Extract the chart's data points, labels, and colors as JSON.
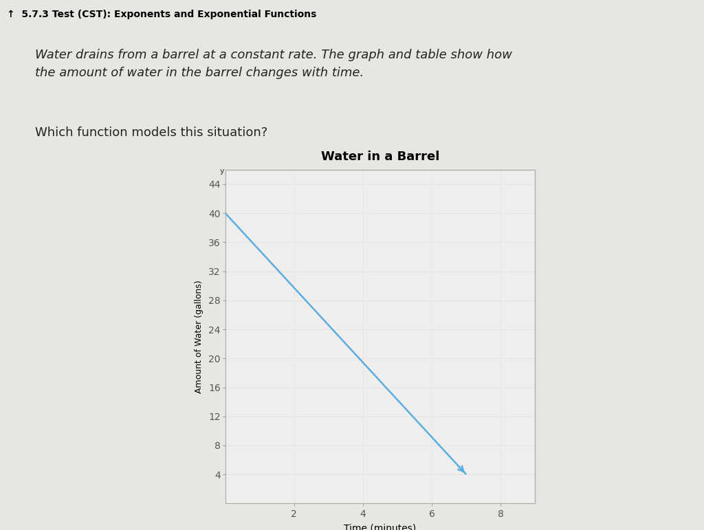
{
  "title": "Water in a Barrel",
  "xlabel": "Time (minutes)",
  "ylabel": "Amount of Water (gallons)",
  "header_text": "↑  5.7.3 Test (CST): Exponents and Exponential Functions",
  "question_text": "Water drains from a barrel at a constant rate. The graph and table show how\nthe amount of water in the barrel changes with time.",
  "question_line3": "Which function models this situation?",
  "line_x": [
    0,
    7
  ],
  "line_y": [
    40,
    4
  ],
  "yticks": [
    4,
    8,
    12,
    16,
    20,
    24,
    28,
    32,
    36,
    40,
    44
  ],
  "xticks": [
    2,
    4,
    6,
    8
  ],
  "ylim": [
    0,
    46
  ],
  "xlim": [
    0,
    9
  ],
  "line_color": "#5aade0",
  "bg_light": "#e8e6e2",
  "bg_outer": "#c8c0b8",
  "plot_bg_color": "#f0eeec",
  "title_fontsize": 13,
  "label_fontsize": 9,
  "tick_fontsize": 8,
  "header_fontsize": 10,
  "question_fontsize": 13
}
